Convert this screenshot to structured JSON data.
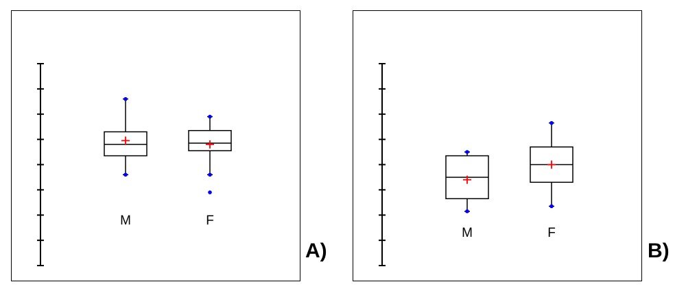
{
  "panels": [
    {
      "tag": "A)"
    },
    {
      "tag": "B)"
    }
  ],
  "colors": {
    "box": "#000000",
    "mean": "#ff0000",
    "points": "#0000ff"
  },
  "chart_data": [
    {
      "type": "box",
      "panel": "A)",
      "ylim": [
        0,
        8
      ],
      "ytick_count": 9,
      "ytick_labels_shown": false,
      "categories": [
        "M",
        "F"
      ],
      "series": [
        {
          "category": "M",
          "whisker_low": 3.6,
          "q1": 4.35,
          "median": 4.8,
          "q3": 5.3,
          "whisker_high": 6.6,
          "mean": 4.95,
          "outliers": []
        },
        {
          "category": "F",
          "whisker_low": 3.6,
          "q1": 4.55,
          "median": 4.85,
          "q3": 5.35,
          "whisker_high": 5.9,
          "mean": 4.8,
          "outliers": [
            2.9
          ]
        }
      ]
    },
    {
      "type": "box",
      "panel": "B)",
      "ylim": [
        0,
        8
      ],
      "ytick_count": 9,
      "ytick_labels_shown": false,
      "categories": [
        "M",
        "F"
      ],
      "series": [
        {
          "category": "M",
          "whisker_low": 2.15,
          "q1": 2.65,
          "median": 3.5,
          "q3": 4.35,
          "whisker_high": 4.5,
          "mean": 3.4,
          "outliers": []
        },
        {
          "category": "F",
          "whisker_low": 2.35,
          "q1": 3.3,
          "median": 4.0,
          "q3": 4.7,
          "whisker_high": 5.65,
          "mean": 4.0,
          "outliers": []
        }
      ]
    }
  ]
}
